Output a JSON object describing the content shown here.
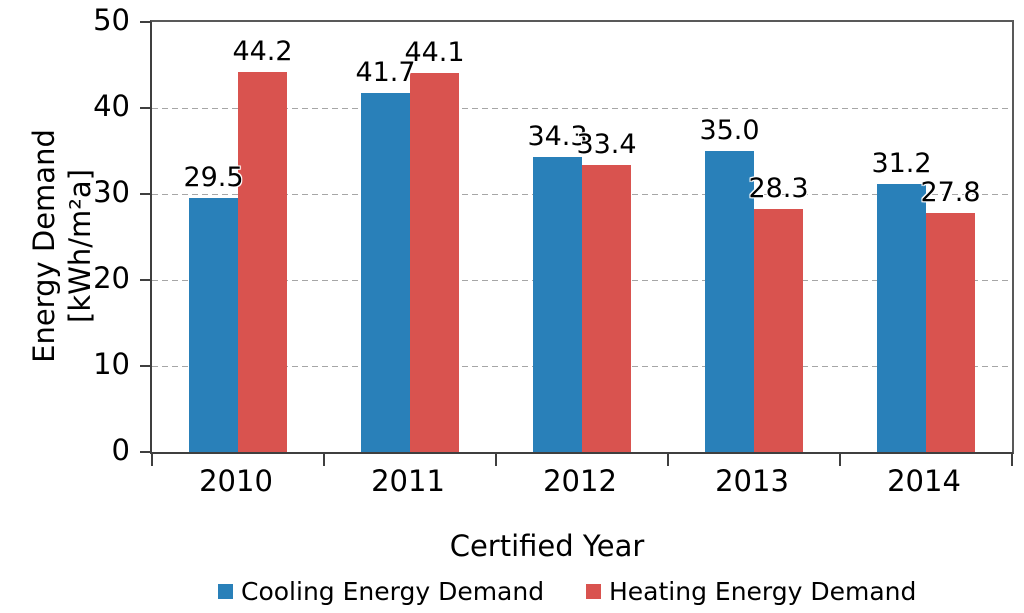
{
  "chart_data": {
    "type": "bar",
    "categories": [
      "2010",
      "2011",
      "2012",
      "2013",
      "2014"
    ],
    "series": [
      {
        "name": "Cooling Energy Demand",
        "color": "#2980B9",
        "values": [
          29.5,
          41.7,
          34.3,
          35.0,
          31.2
        ]
      },
      {
        "name": "Heating Energy Demand",
        "color": "#D9534F",
        "values": [
          44.2,
          44.1,
          33.4,
          28.3,
          27.8
        ]
      }
    ],
    "xlabel": "Certified Year",
    "ylabel_lines": [
      "Energy Demand",
      "[kWh/m²a]"
    ],
    "ylim": [
      0,
      50
    ],
    "ytick_step": 10,
    "yticks": [
      0,
      10,
      20,
      30,
      40,
      50
    ],
    "grid": "horizontal-dashed",
    "legend_position": "bottom",
    "value_labels": "one-decimal",
    "colors": {
      "axis": "#3f3f3f",
      "plot_border": "#595959",
      "gridline": "#a6a6a6",
      "text": "#000000",
      "background": "#ffffff"
    }
  }
}
